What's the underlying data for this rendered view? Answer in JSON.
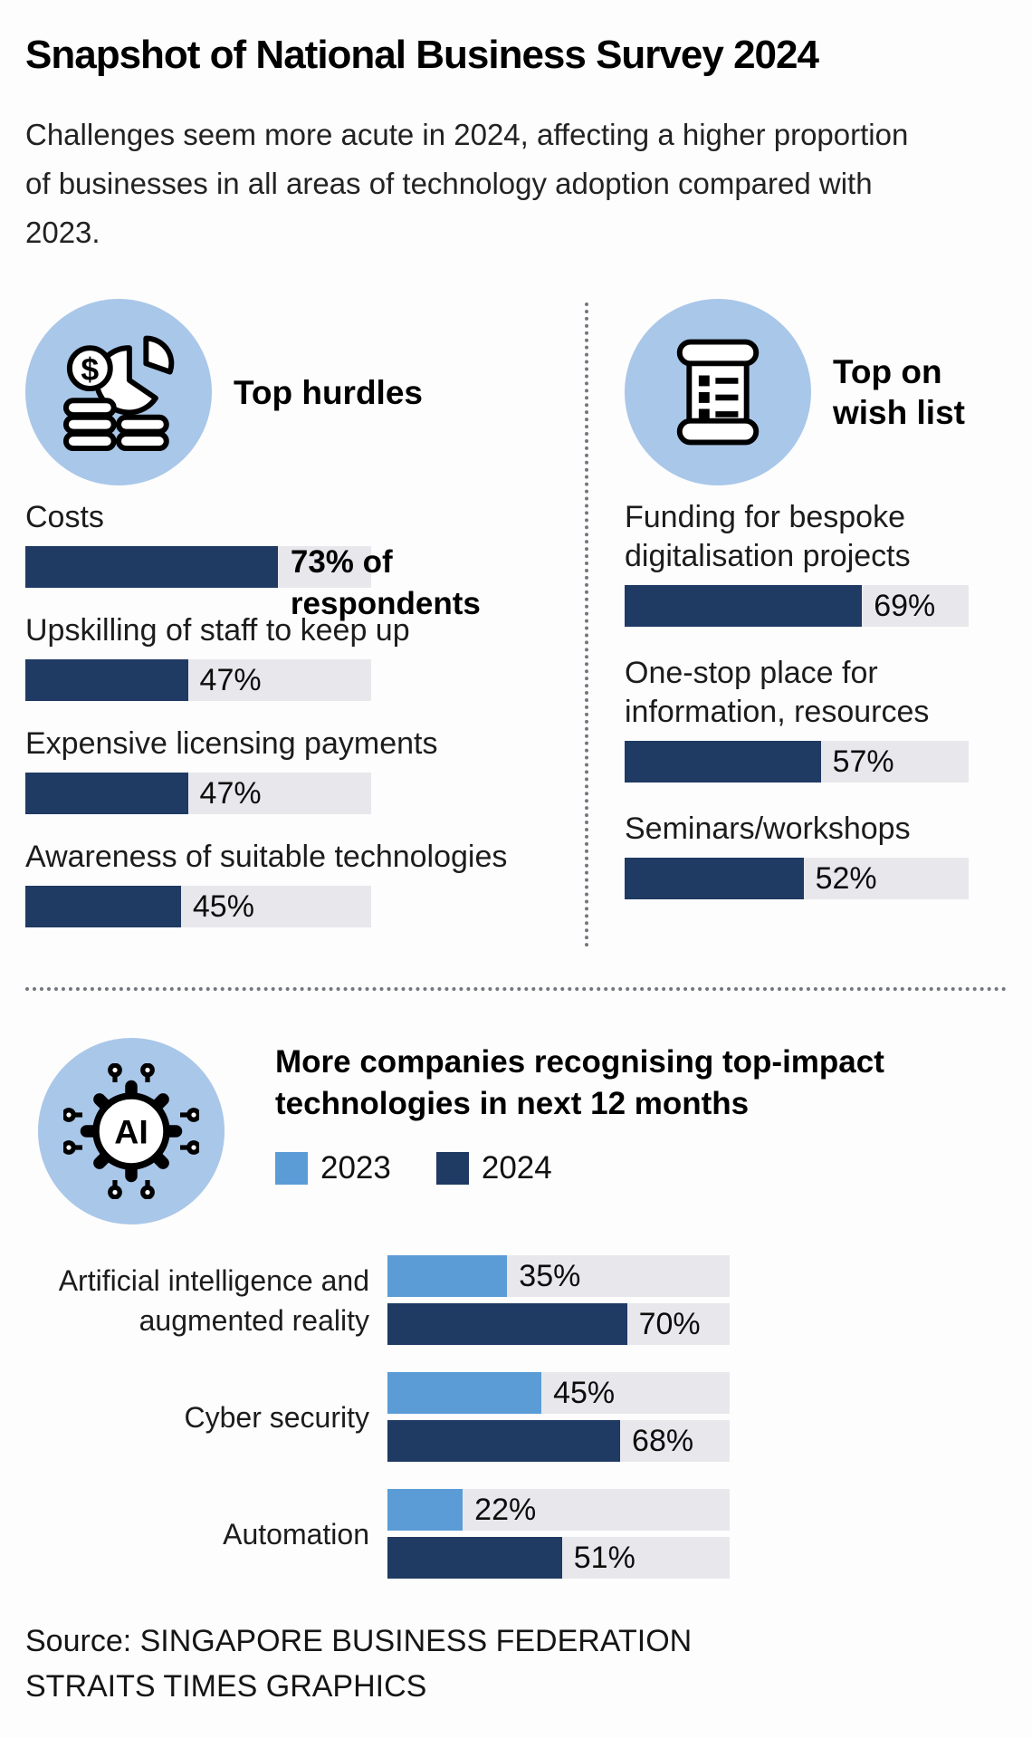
{
  "title": "Snapshot of National Business Survey 2024",
  "subtitle": "Challenges seem more acute in 2024, affecting a higher proportion of businesses in all areas of technology adoption compared with 2023.",
  "source": {
    "line1": "Source: SINGAPORE BUSINESS FEDERATION",
    "line2": "STRAITS TIMES GRAPHICS"
  },
  "colors": {
    "navy_2024": "#1f3a63",
    "light_blue_2023": "#5b9cd6",
    "icon_circle_blue": "#a9c7e9",
    "bar_track_gray": "#e8e8ec"
  },
  "icons": {
    "hurdles": "money-pie-icon",
    "wishlist": "scroll-checklist-icon",
    "tech": "ai-gear-icon"
  },
  "chart_data": [
    {
      "type": "bar",
      "orientation": "horizontal",
      "title": "Top hurdles",
      "categories": [
        "Costs",
        "Upskilling of staff to keep up",
        "Expensive licensing payments",
        "Awareness of suitable technologies"
      ],
      "values": [
        73,
        47,
        47,
        45
      ],
      "value_labels": [
        "73% of respondents",
        "47%",
        "47%",
        "45%"
      ],
      "xlim": [
        0,
        100
      ],
      "unit": "% of respondents",
      "grid": false
    },
    {
      "type": "bar",
      "orientation": "horizontal",
      "title": "Top on wish list",
      "categories": [
        "Funding for bespoke digitalisation projects",
        "One-stop place for information, resources",
        "Seminars/workshops"
      ],
      "values": [
        69,
        57,
        52
      ],
      "value_labels": [
        "69%",
        "57%",
        "52%"
      ],
      "xlim": [
        0,
        100
      ],
      "unit": "% of respondents",
      "grid": false
    },
    {
      "type": "bar",
      "orientation": "horizontal",
      "title": "More companies recognising top-impact technologies in next 12 months",
      "categories": [
        "Artificial intelligence and augmented reality",
        "Cyber security",
        "Automation"
      ],
      "series": [
        {
          "name": "2023",
          "values": [
            35,
            45,
            22
          ]
        },
        {
          "name": "2024",
          "values": [
            70,
            68,
            51
          ]
        }
      ],
      "value_labels": [
        [
          "35%",
          "45%",
          "22%"
        ],
        [
          "70%",
          "68%",
          "51%"
        ]
      ],
      "xlim": [
        0,
        100
      ],
      "legend_position": "top",
      "grid": false
    }
  ]
}
